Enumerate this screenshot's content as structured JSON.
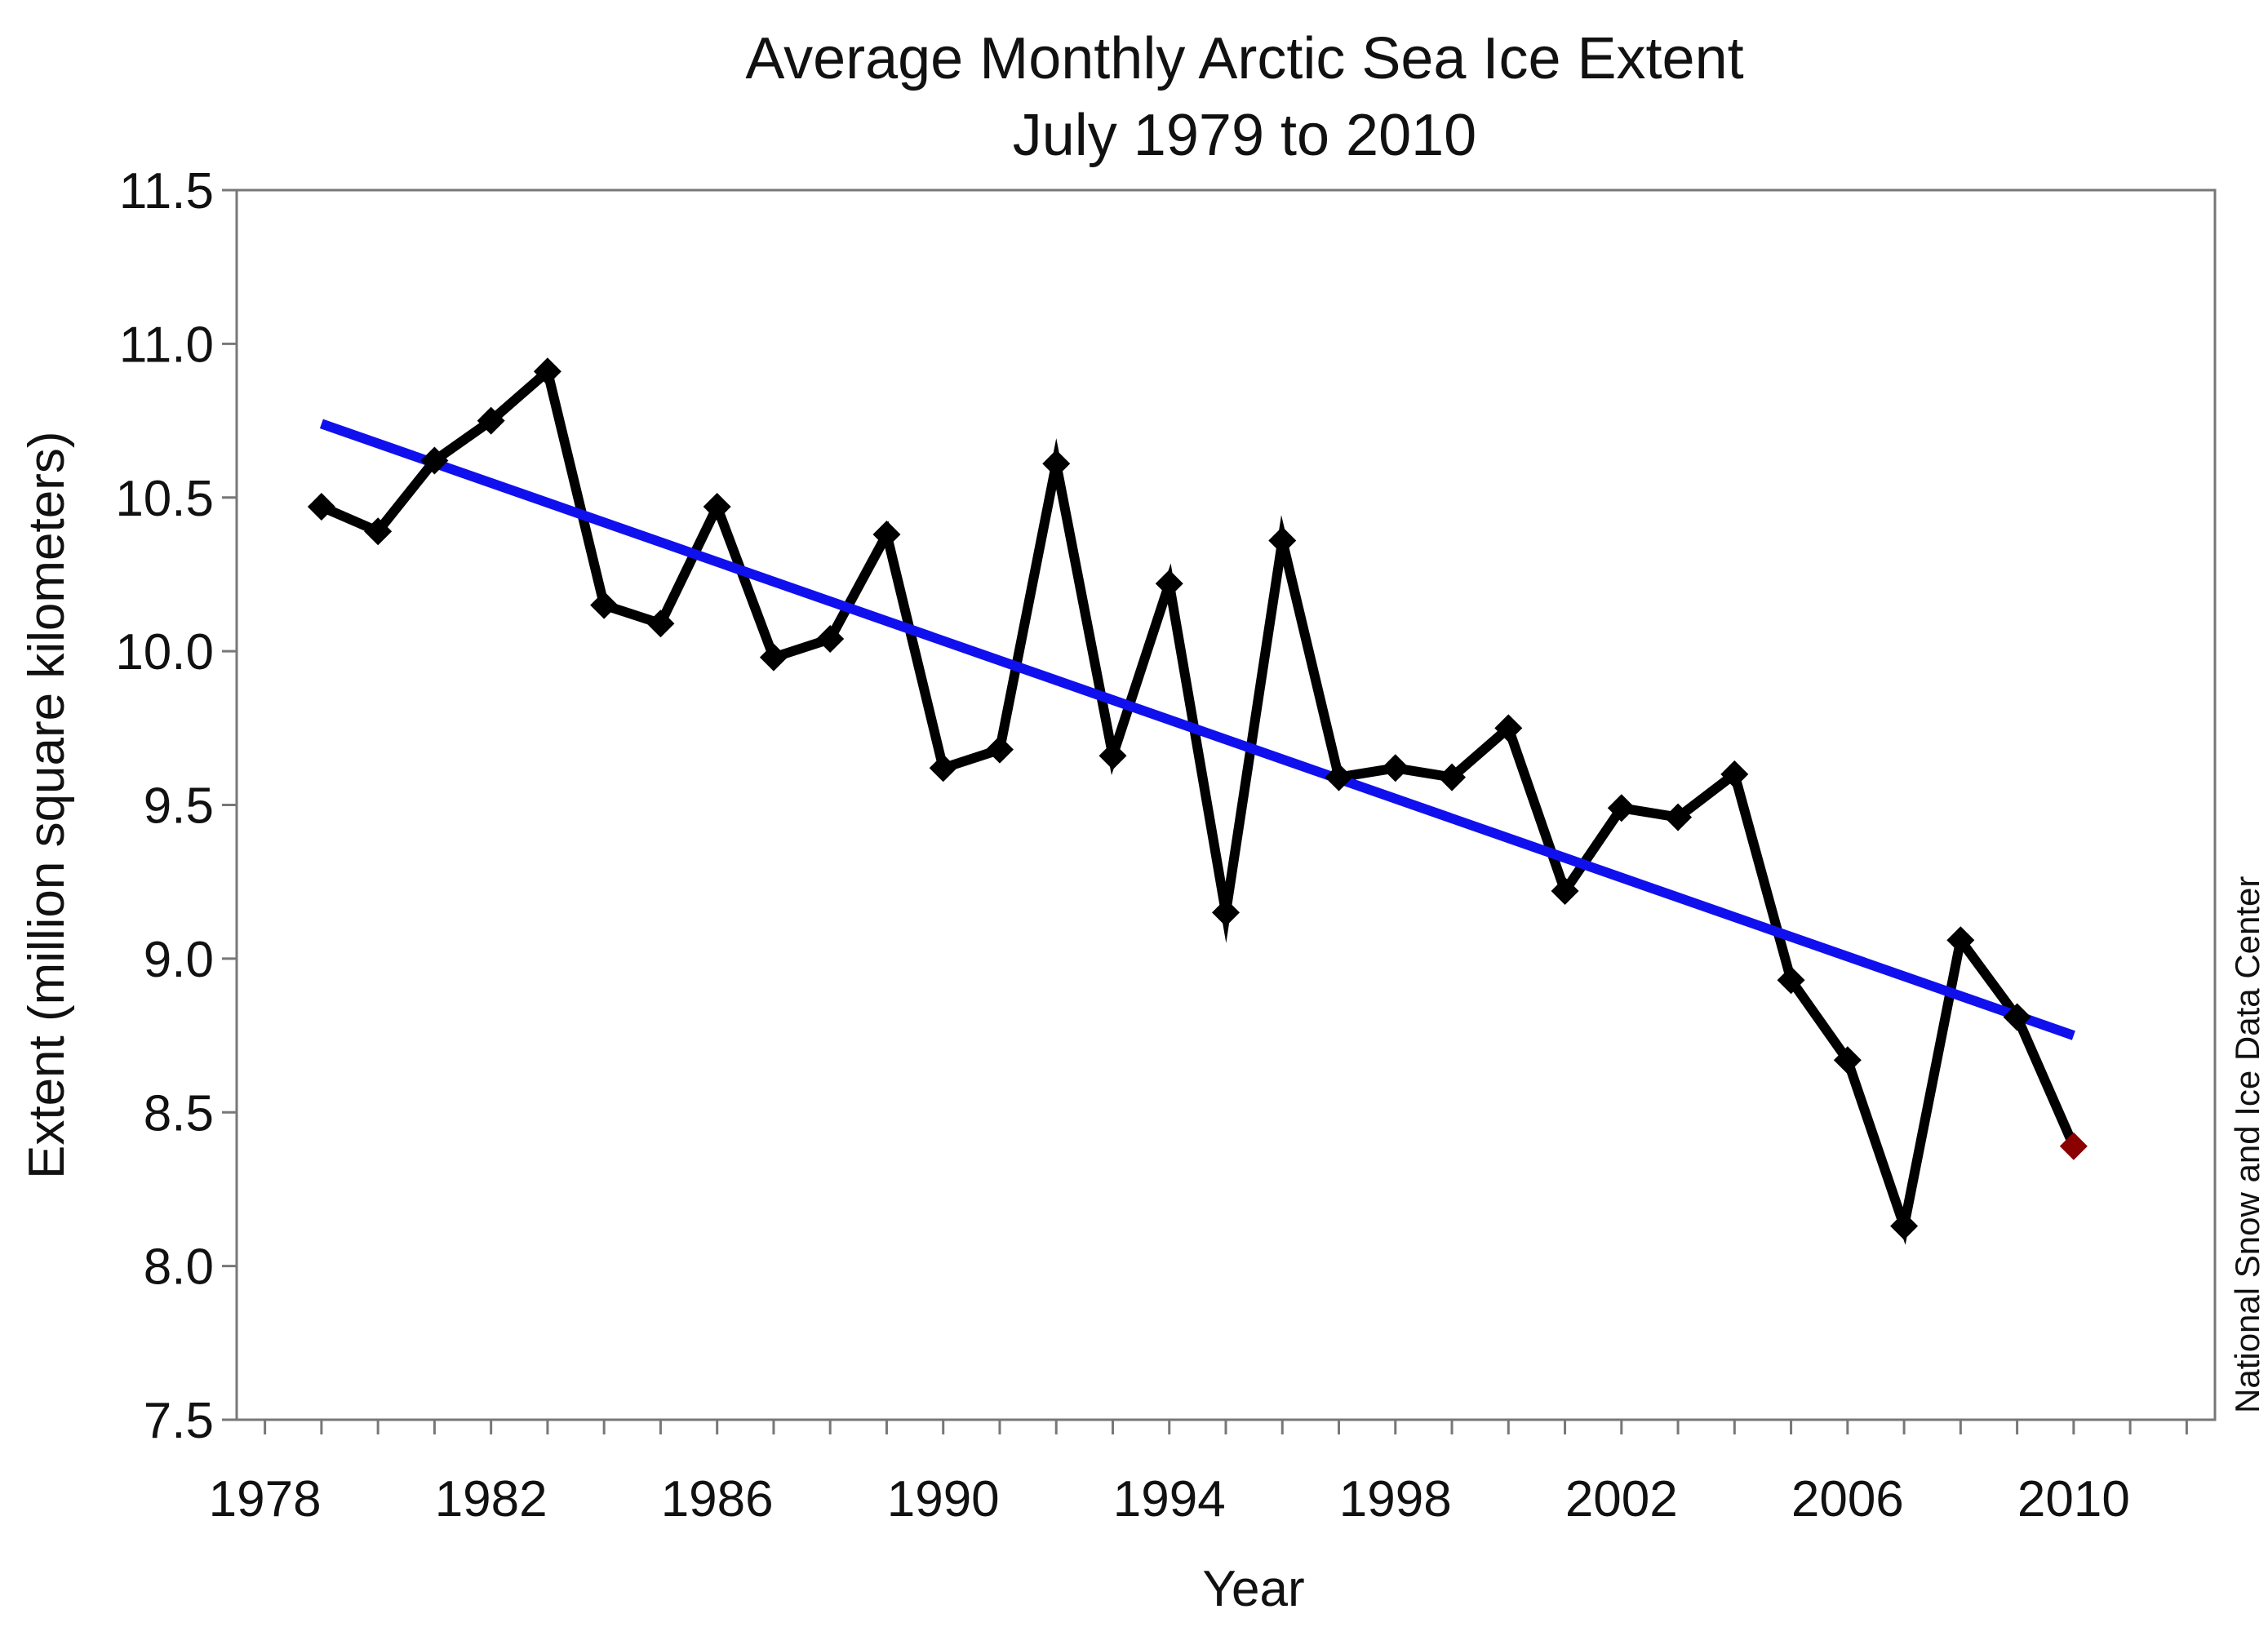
{
  "chart_data": {
    "type": "line",
    "title": "Average Monthly Arctic Sea Ice Extent",
    "subtitle": "July 1979 to 2010",
    "xlabel": "Year",
    "ylabel": "Extent (million square kilometers)",
    "credit": "National Snow and Ice Data Center",
    "xlim": [
      1977.5,
      2012.5
    ],
    "ylim": [
      7.5,
      11.5
    ],
    "x_ticks": [
      1978,
      1982,
      1986,
      1990,
      1994,
      1998,
      2002,
      2006,
      2010
    ],
    "y_ticks": [
      "7.5",
      "8.0",
      "8.5",
      "9.0",
      "9.5",
      "10.0",
      "10.5",
      "11.0",
      "11.5"
    ],
    "grid": false,
    "series": [
      {
        "color": "#000000",
        "marker": "diamond",
        "x": [
          1979,
          1980,
          1981,
          1982,
          1983,
          1984,
          1985,
          1986,
          1987,
          1988,
          1989,
          1990,
          1991,
          1992,
          1993,
          1994,
          1995,
          1996,
          1997,
          1998,
          1999,
          2000,
          2001,
          2002,
          2003,
          2004,
          2005,
          2006,
          2007,
          2008,
          2009,
          2010
        ],
        "y": [
          10.47,
          10.39,
          10.62,
          10.75,
          10.91,
          10.15,
          10.09,
          10.47,
          9.98,
          10.04,
          10.38,
          9.62,
          9.68,
          10.61,
          9.66,
          10.22,
          9.15,
          10.36,
          9.59,
          9.62,
          9.59,
          9.75,
          9.22,
          9.49,
          9.46,
          9.6,
          8.93,
          8.67,
          8.13,
          9.06,
          8.81,
          8.39
        ],
        "highlight_last_color": "#8b0000"
      },
      {
        "type": "trend",
        "color": "#1010ee",
        "x": [
          1979,
          2010
        ],
        "y": [
          10.74,
          8.75
        ]
      }
    ]
  }
}
